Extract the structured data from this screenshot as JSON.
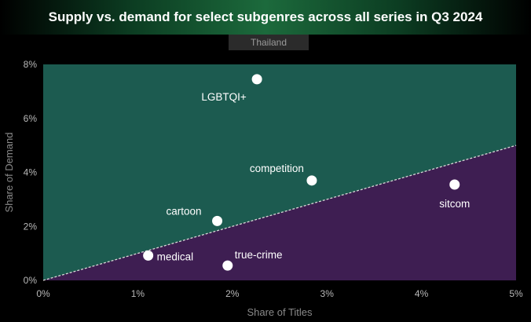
{
  "header": {
    "title": "Supply vs. demand for select subgenres across all series in Q3 2024",
    "subtitle": "Thailand"
  },
  "colors": {
    "above_line": "#1c5b50",
    "below_line": "#3e1e52",
    "point": "#ffffff",
    "parity_line": "#d8d8d8"
  },
  "chart_data": {
    "type": "scatter",
    "title": "Supply vs. demand for select subgenres across all series in Q3 2024",
    "subtitle": "Thailand",
    "xlabel": "Share of Titles",
    "ylabel": "Share of Demand",
    "xlim": [
      0,
      5
    ],
    "ylim": [
      0,
      8
    ],
    "xticks": [
      0,
      1,
      2,
      3,
      4,
      5
    ],
    "yticks": [
      0,
      2,
      4,
      6,
      8
    ],
    "xtick_labels": [
      "0%",
      "1%",
      "2%",
      "3%",
      "4%",
      "5%"
    ],
    "ytick_labels": [
      "0%",
      "2%",
      "4%",
      "6%",
      "8%"
    ],
    "grid": false,
    "reference_line": "y = x",
    "points": [
      {
        "label": "LGBTQI+",
        "x": 2.26,
        "y": 7.45
      },
      {
        "label": "competition",
        "x": 2.84,
        "y": 3.7
      },
      {
        "label": "sitcom",
        "x": 4.35,
        "y": 3.55
      },
      {
        "label": "cartoon",
        "x": 1.84,
        "y": 2.2
      },
      {
        "label": "medical",
        "x": 1.11,
        "y": 0.92
      },
      {
        "label": "true-crime",
        "x": 1.95,
        "y": 0.55
      }
    ]
  }
}
